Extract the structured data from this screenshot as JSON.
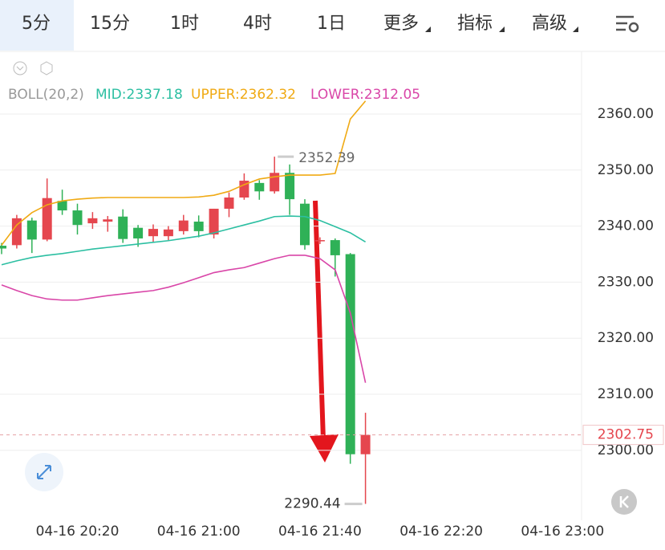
{
  "toolbar": {
    "tabs": [
      "5分",
      "15分",
      "1时",
      "4时",
      "1日",
      "更多",
      "指标",
      "高级"
    ]
  },
  "chart_data": {
    "type": "candlestick",
    "indicator": "BOLL(20,2)",
    "categories": [
      null,
      null,
      null,
      null,
      null,
      "04-16 20:20",
      null,
      null,
      null,
      null,
      null,
      null,
      null,
      "04-16 21:00",
      null,
      null,
      null,
      null,
      null,
      null,
      null,
      "04-16 21:40",
      null,
      null,
      null,
      null,
      null,
      null,
      null,
      "04-16 22:20",
      null,
      null,
      null,
      null,
      null,
      null,
      null,
      "04-16 23:00"
    ],
    "open": [
      2336.5,
      2336.6,
      2341,
      2337.6,
      2344.5,
      2342.8,
      2340.5,
      2340.8,
      2341.7,
      2339.7,
      2338.2,
      2338.2,
      2339.1,
      2340.8,
      2338.5,
      2343.1,
      2345.1,
      2347.7,
      2346.2,
      2349.5,
      2344,
      2337.3,
      2337.5,
      2335,
      2299.3,
      null,
      null,
      null,
      null,
      null,
      null,
      null,
      null,
      null,
      null,
      null,
      null,
      null
    ],
    "high": [
      2337,
      2342,
      2341.5,
      2348.5,
      2346.5,
      2344,
      2342.5,
      2341.8,
      2343,
      2340.2,
      2340.3,
      2340,
      2342,
      2341.9,
      2343.1,
      2346,
      2349.4,
      2348.2,
      2352.39,
      2351,
      2344.8,
      2338,
      2337.8,
      2335.2,
      2306.7,
      null,
      null,
      null,
      null,
      null,
      null,
      null,
      null,
      null,
      null,
      null,
      null,
      null
    ],
    "low": [
      2335,
      2336,
      2335.2,
      2337.3,
      2342,
      2338.5,
      2339.5,
      2339,
      2337,
      2336.3,
      2337.2,
      2337.5,
      2338.5,
      2338,
      2337.8,
      2341.6,
      2344.7,
      2344.7,
      2345.8,
      2342,
      2335.8,
      2336.8,
      2331,
      2297.6,
      2290.44,
      null,
      null,
      null,
      null,
      null,
      null,
      null,
      null,
      null,
      null,
      null,
      null,
      null
    ],
    "close": [
      2336,
      2341.4,
      2337.6,
      2345,
      2342.8,
      2340.2,
      2341.4,
      2341.2,
      2337.7,
      2337.8,
      2339.5,
      2339.4,
      2341,
      2339.1,
      2343.1,
      2345.1,
      2348.1,
      2346.2,
      2349.5,
      2344.8,
      2336.6,
      2337.5,
      2334.8,
      2299.3,
      2302.75,
      null,
      null,
      null,
      null,
      null,
      null,
      null,
      null,
      null,
      null,
      null,
      null,
      null
    ],
    "up_color": "#e5464e",
    "down_color": "#2fb157",
    "series": [
      {
        "name": "MID:2337.18",
        "color": "#2cbfa2",
        "values": [
          2333.1,
          2333.8,
          2334.4,
          2334.8,
          2335.1,
          2335.5,
          2335.9,
          2336.2,
          2336.5,
          2336.8,
          2337.1,
          2337.4,
          2337.8,
          2338.2,
          2338.8,
          2339.5,
          2340.2,
          2340.9,
          2341.7,
          2341.8,
          2341.7,
          2341.0,
          2339.9,
          2338.8,
          2337.18,
          null,
          null,
          null,
          null,
          null,
          null,
          null,
          null,
          null,
          null,
          null,
          null,
          null
        ]
      },
      {
        "name": "UPPER:2362.32",
        "color": "#f0aa14",
        "values": [
          2336.6,
          2340.2,
          2342.4,
          2343.8,
          2344.5,
          2344.8,
          2345.0,
          2345.1,
          2345.1,
          2345.1,
          2345.1,
          2345.1,
          2345.1,
          2345.2,
          2345.5,
          2346.2,
          2347.4,
          2348.4,
          2348.8,
          2349.1,
          2349.1,
          2349.1,
          2349.4,
          2359.1,
          2362.32,
          null,
          null,
          null,
          null,
          null,
          null,
          null,
          null,
          null,
          null,
          null,
          null,
          null
        ]
      },
      {
        "name": "LOWER:2312.05",
        "color": "#d946a8",
        "values": [
          2329.5,
          2328.5,
          2327.6,
          2327.0,
          2326.8,
          2326.8,
          2327.2,
          2327.6,
          2327.9,
          2328.2,
          2328.5,
          2329.1,
          2329.9,
          2330.8,
          2331.7,
          2332.2,
          2332.6,
          2333.4,
          2334.2,
          2334.8,
          2334.8,
          2334.2,
          2332.2,
          2324.5,
          2312.05,
          null,
          null,
          null,
          null,
          null,
          null,
          null,
          null,
          null,
          null,
          null,
          null,
          null
        ]
      }
    ],
    "ylim": [
      2288,
      2371
    ],
    "yticks": [
      {
        "value": 2300,
        "label": "2300.00"
      },
      {
        "value": 2310,
        "label": "2310.00"
      },
      {
        "value": 2320,
        "label": "2320.00"
      },
      {
        "value": 2330,
        "label": "2330.00"
      },
      {
        "value": 2340,
        "label": "2340.00"
      },
      {
        "value": 2350,
        "label": "2350.00"
      },
      {
        "value": 2360,
        "label": "2360.00"
      }
    ],
    "grid": true
  }
}
